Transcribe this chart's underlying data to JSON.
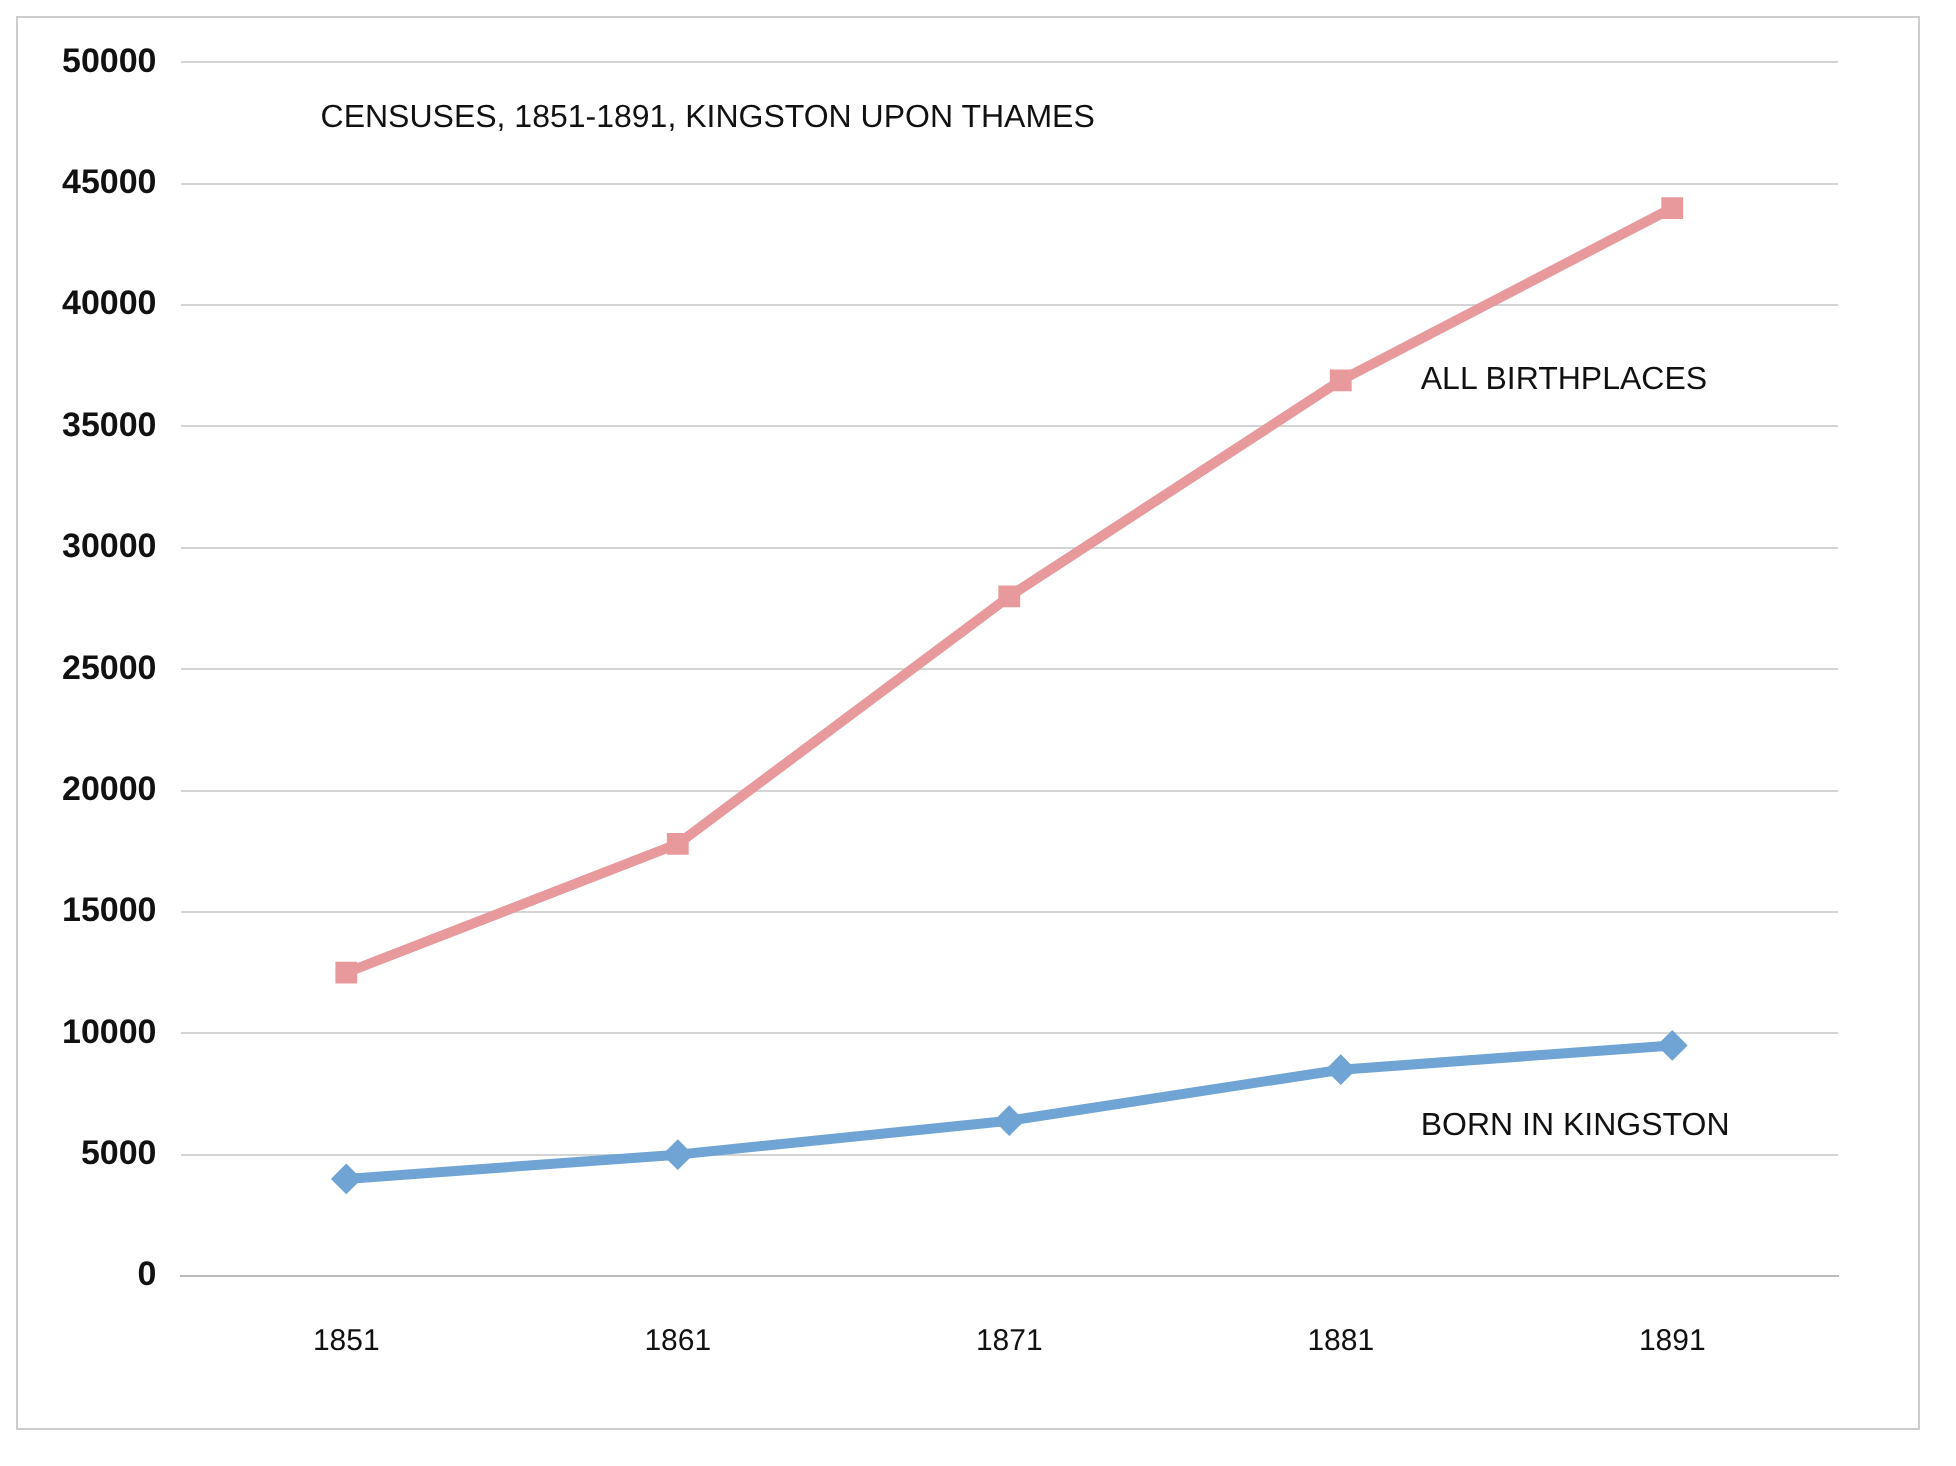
{
  "chart_data": {
    "type": "line",
    "title": "CENSUSES, 1851-1891, KINGSTON UPON THAMES",
    "categories": [
      "1851",
      "1861",
      "1871",
      "1881",
      "1891"
    ],
    "series": [
      {
        "name": "ALL BIRTHPLACES",
        "color": "#e8999b",
        "marker": "square",
        "values": [
          12500,
          17800,
          28000,
          36900,
          44000
        ]
      },
      {
        "name": "BORN IN KINGSTON",
        "color": "#6fa4d4",
        "marker": "diamond",
        "values": [
          4000,
          5000,
          6400,
          8500,
          9500
        ]
      }
    ],
    "ylim": [
      0,
      50000
    ],
    "yticks": [
      0,
      5000,
      10000,
      15000,
      20000,
      25000,
      30000,
      35000,
      40000,
      45000,
      50000
    ],
    "grid": "y",
    "legend": false,
    "line_style": "solid"
  }
}
